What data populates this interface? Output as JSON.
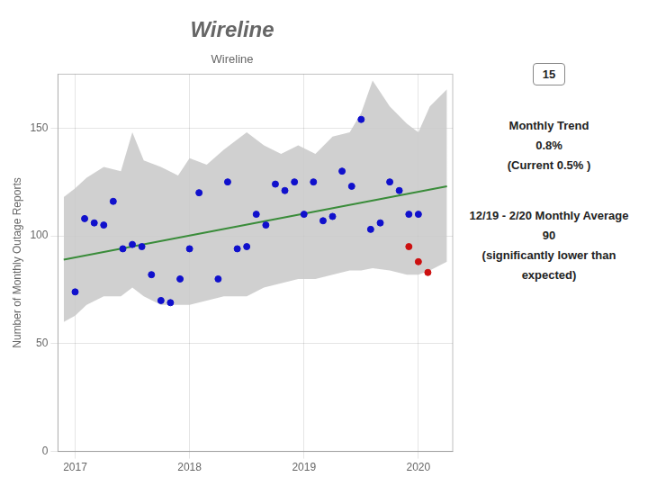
{
  "chart_data": {
    "type": "scatter",
    "title": "Wireline",
    "subtitle": "Wireline",
    "ylabel": "Number of Monthly Outage Reports",
    "annotations": [
      [
        "15"
      ],
      [
        "Monthly Trend",
        "0.8%",
        "(Current 0.5% )"
      ],
      [
        "12/19 - 2/20 Monthly Average",
        "90",
        "(significantly lower than expected)"
      ]
    ],
    "xlim": [
      2016.85,
      2020.3
    ],
    "xticks": [
      2017,
      2018,
      2019,
      2020
    ],
    "ylim": [
      0,
      175
    ],
    "yticks": [
      0,
      50,
      100,
      150
    ],
    "grid": true,
    "series": [
      {
        "type": "band",
        "color": "#c8c8c8",
        "x": [
          2016.9,
          2017.0,
          2017.1,
          2017.25,
          2017.4,
          2017.5,
          2017.6,
          2017.75,
          2017.9,
          2018.0,
          2018.15,
          2018.3,
          2018.5,
          2018.65,
          2018.8,
          2018.95,
          2019.1,
          2019.25,
          2019.4,
          2019.5,
          2019.6,
          2019.75,
          2019.9,
          2020.0,
          2020.1,
          2020.25
        ],
        "upper": [
          118,
          122,
          127,
          132,
          130,
          148,
          135,
          132,
          128,
          136,
          133,
          140,
          148,
          142,
          138,
          142,
          138,
          146,
          148,
          157,
          172,
          160,
          152,
          148,
          160,
          168
        ],
        "lower": [
          60,
          63,
          68,
          72,
          72,
          76,
          72,
          68,
          68,
          68,
          70,
          72,
          72,
          76,
          78,
          80,
          80,
          82,
          84,
          84,
          85,
          84,
          82,
          82,
          84,
          88
        ]
      },
      {
        "type": "line",
        "color": "#3a8c3a",
        "x": [
          2016.9,
          2020.25
        ],
        "values": [
          89,
          123
        ]
      },
      {
        "type": "scatter",
        "color": "#1010cc",
        "x": [
          2017.0,
          2017.083,
          2017.167,
          2017.25,
          2017.333,
          2017.417,
          2017.5,
          2017.583,
          2017.667,
          2017.75,
          2017.833,
          2017.917,
          2018.0,
          2018.083,
          2018.25,
          2018.333,
          2018.417,
          2018.5,
          2018.583,
          2018.667,
          2018.75,
          2018.833,
          2018.917,
          2019.0,
          2019.083,
          2019.167,
          2019.25,
          2019.333,
          2019.417,
          2019.5,
          2019.583,
          2019.667,
          2019.75,
          2019.833,
          2019.917,
          2020.0
        ],
        "values": [
          74,
          108,
          106,
          105,
          116,
          94,
          96,
          95,
          82,
          70,
          69,
          80,
          94,
          120,
          80,
          125,
          94,
          95,
          110,
          105,
          124,
          121,
          125,
          110,
          125,
          107,
          109,
          130,
          123,
          154,
          103,
          106,
          125,
          121,
          110,
          110
        ]
      },
      {
        "type": "scatter",
        "color": "#cc1010",
        "x": [
          2019.917,
          2020.0,
          2020.083
        ],
        "values": [
          95,
          88,
          83
        ]
      }
    ]
  }
}
